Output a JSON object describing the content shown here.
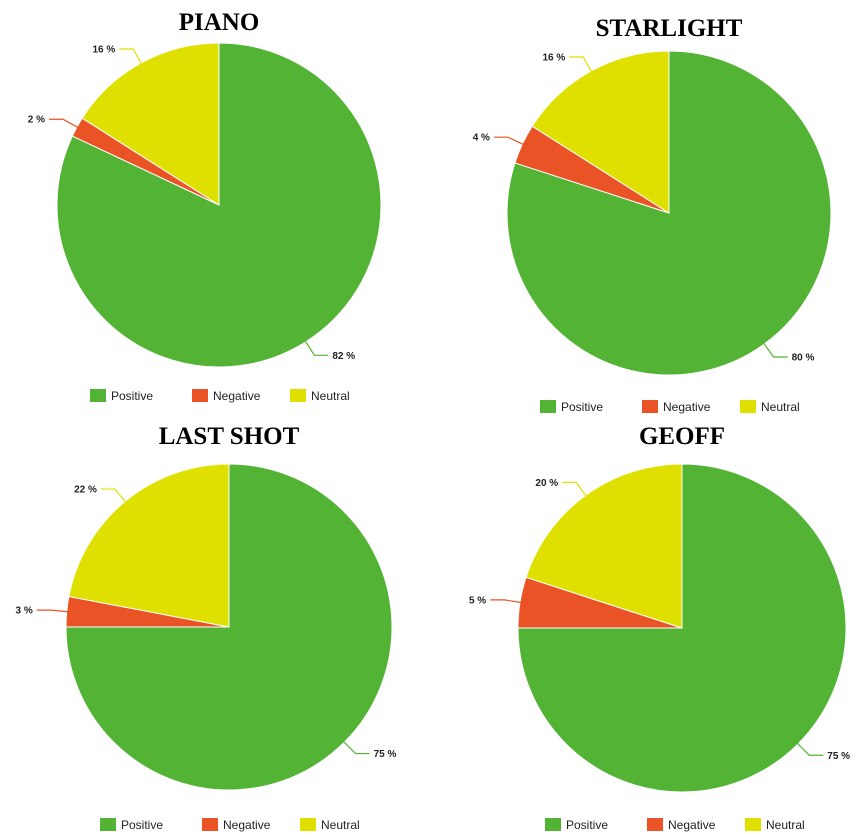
{
  "colors": {
    "Positive": "#52b334",
    "Negative": "#ea5325",
    "Neutral": "#e0e000"
  },
  "chart_data": [
    {
      "type": "pie",
      "title": "PIANO",
      "categories": [
        "Positive",
        "Negative",
        "Neutral"
      ],
      "values": [
        82,
        2,
        16
      ],
      "value_labels": [
        "82 %",
        "2 %",
        "16 %"
      ],
      "legend": [
        "Positive",
        "Negative",
        "Neutral"
      ],
      "legend_position": "bottom"
    },
    {
      "type": "pie",
      "title": "STARLIGHT",
      "categories": [
        "Positive",
        "Negative",
        "Neutral"
      ],
      "values": [
        80,
        4,
        16
      ],
      "value_labels": [
        "80 %",
        "4 %",
        "16 %"
      ],
      "legend": [
        "Positive",
        "Negative",
        "Neutral"
      ],
      "legend_position": "bottom"
    },
    {
      "type": "pie",
      "title": "LAST SHOT",
      "categories": [
        "Positive",
        "Negative",
        "Neutral"
      ],
      "values": [
        75,
        3,
        22
      ],
      "value_labels": [
        "75 %",
        "3 %",
        "22 %"
      ],
      "legend": [
        "Positive",
        "Negative",
        "Neutral"
      ],
      "legend_position": "bottom"
    },
    {
      "type": "pie",
      "title": "GEOFF",
      "categories": [
        "Positive",
        "Negative",
        "Neutral"
      ],
      "values": [
        75,
        5,
        20
      ],
      "value_labels": [
        "75 %",
        "5 %",
        "20 %"
      ],
      "legend": [
        "Positive",
        "Negative",
        "Neutral"
      ],
      "legend_position": "bottom"
    }
  ]
}
